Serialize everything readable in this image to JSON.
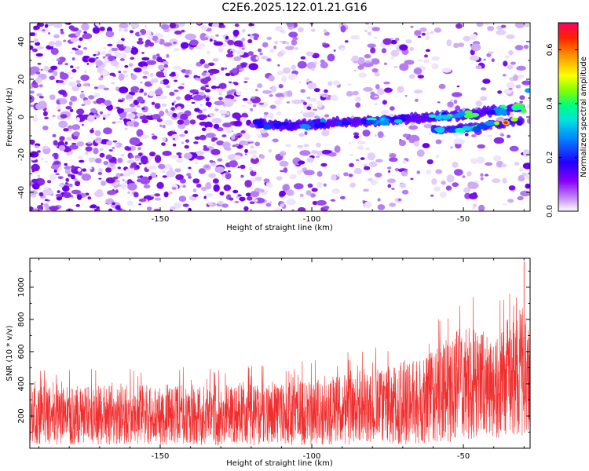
{
  "title": "C2E6.2025.122.01.21.G16",
  "colors": {
    "spectrogram_base": "#8a2be2",
    "snr_line": "#f03030",
    "axis": "#000000",
    "background": "#ffffff"
  },
  "chart_data": [
    {
      "type": "heatmap",
      "name": "spectrogram",
      "xlabel": "Height of straight line (km)",
      "ylabel": "Frequency (Hz)",
      "xlim": [
        -193,
        -28
      ],
      "ylim": [
        -50,
        50
      ],
      "xticks": [
        -150,
        -100,
        -50
      ],
      "yticks": [
        -40,
        -20,
        0,
        20,
        40
      ],
      "colorbar": {
        "label": "Normalized spectral amplitude",
        "range": [
          0.0,
          0.7
        ],
        "ticks": [
          0.0,
          0.2,
          0.4,
          0.6
        ],
        "tick_labels": [
          "0.0",
          "0.2",
          "0.4",
          "0.6"
        ],
        "colormap": [
          "#ffffff",
          "#d8b8f8",
          "#9b30ff",
          "#5000ff",
          "#0030ff",
          "#00a0ff",
          "#00e0e0",
          "#00ff80",
          "#80ff00",
          "#ffff00",
          "#ffa000",
          "#ff3000",
          "#ff0060"
        ]
      },
      "signal_track": {
        "description_values": [
          {
            "x": -118,
            "y": -4
          },
          {
            "x": -105,
            "y": -4.5
          },
          {
            "x": -90,
            "y": -3
          },
          {
            "x": -75,
            "y": -2
          },
          {
            "x": -60,
            "y": 0
          },
          {
            "x": -45,
            "y": 2
          },
          {
            "x": -30,
            "y": 5
          }
        ],
        "secondary_band": [
          {
            "x": -60,
            "y": -7
          },
          {
            "x": -45,
            "y": -5
          },
          {
            "x": -30,
            "y": -2
          }
        ],
        "peak": {
          "x": -36,
          "y": -3,
          "value": 0.7
        }
      }
    },
    {
      "type": "line",
      "name": "snr",
      "xlabel": "Height of straight line (km)",
      "ylabel": "SNR (10 * v/v)",
      "xlim": [
        -193,
        -28
      ],
      "ylim": [
        0,
        1180
      ],
      "xticks": [
        -150,
        -100,
        -50
      ],
      "yticks": [
        200,
        400,
        600,
        800,
        1000
      ],
      "series": [
        {
          "color": "#f03030",
          "envelope": [
            {
              "x": -193,
              "low": 20,
              "high": 500
            },
            {
              "x": -150,
              "low": 20,
              "high": 520
            },
            {
              "x": -120,
              "low": 15,
              "high": 520
            },
            {
              "x": -100,
              "low": 20,
              "high": 560
            },
            {
              "x": -80,
              "low": 20,
              "high": 630
            },
            {
              "x": -60,
              "low": 30,
              "high": 800
            },
            {
              "x": -50,
              "low": 40,
              "high": 1000
            },
            {
              "x": -40,
              "low": 60,
              "high": 940
            },
            {
              "x": -30,
              "low": 80,
              "high": 1160
            },
            {
              "x": -28,
              "low": 100,
              "high": 900
            }
          ],
          "peak": {
            "x": -30,
            "y": 1160
          }
        }
      ]
    }
  ]
}
